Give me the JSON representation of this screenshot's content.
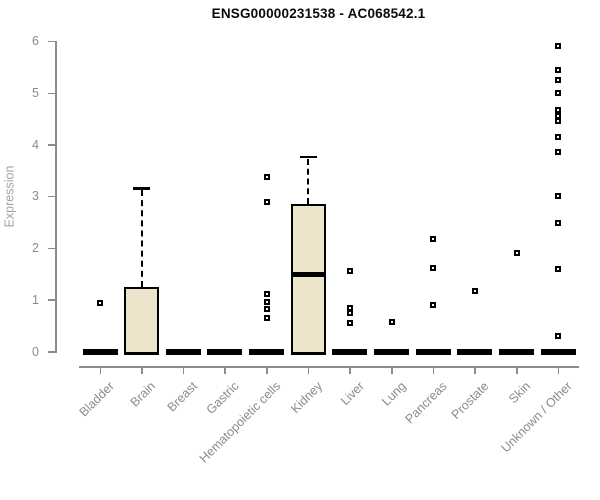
{
  "chart_data": {
    "type": "boxplot",
    "title": "ENSG00000231538 - AC068542.1",
    "ylabel": "Expression",
    "ylim": [
      0,
      6
    ],
    "yticks": [
      0,
      1,
      2,
      3,
      4,
      5,
      6
    ],
    "grid": false,
    "legend": "none",
    "marker": "open-square",
    "categories": [
      "Bladder",
      "Brain",
      "Breast",
      "Gastric",
      "Hematopoietic cells",
      "Kidney",
      "Liver",
      "Lung",
      "Pancreas",
      "Prostate",
      "Skin",
      "Unknown / Other"
    ],
    "series": [
      {
        "whisker_low": 0,
        "q1": 0,
        "median": 0,
        "q3": 0,
        "whisker_high": 0,
        "outliers": [
          0.93
        ]
      },
      {
        "whisker_low": 0,
        "q1": 0,
        "median": 0,
        "q3": 1.24,
        "whisker_high": 3.16,
        "outliers": []
      },
      {
        "whisker_low": 0,
        "q1": 0,
        "median": 0,
        "q3": 0,
        "whisker_high": 0,
        "outliers": []
      },
      {
        "whisker_low": 0,
        "q1": 0,
        "median": 0,
        "q3": 0,
        "whisker_high": 0,
        "outliers": []
      },
      {
        "whisker_low": 0,
        "q1": 0,
        "median": 0,
        "q3": 0,
        "whisker_high": 0,
        "outliers": [
          3.37,
          2.9,
          1.12,
          0.95,
          0.82,
          0.64
        ]
      },
      {
        "whisker_low": 0,
        "q1": 0,
        "median": 1.48,
        "q3": 2.86,
        "whisker_high": 3.77,
        "outliers": []
      },
      {
        "whisker_low": 0,
        "q1": 0,
        "median": 0,
        "q3": 0,
        "whisker_high": 0,
        "outliers": [
          1.55,
          0.85,
          0.75,
          0.55
        ]
      },
      {
        "whisker_low": 0,
        "q1": 0,
        "median": 0,
        "q3": 0,
        "whisker_high": 0,
        "outliers": [
          0.58
        ]
      },
      {
        "whisker_low": 0,
        "q1": 0,
        "median": 0,
        "q3": 0,
        "whisker_high": 0,
        "outliers": [
          2.17,
          1.62,
          0.9
        ]
      },
      {
        "whisker_low": 0,
        "q1": 0,
        "median": 0,
        "q3": 0,
        "whisker_high": 0,
        "outliers": [
          1.17
        ]
      },
      {
        "whisker_low": 0,
        "q1": 0,
        "median": 0,
        "q3": 0,
        "whisker_high": 0,
        "outliers": [
          1.9
        ]
      },
      {
        "whisker_low": 0,
        "q1": 0,
        "median": 0,
        "q3": 0,
        "whisker_high": 0,
        "outliers": [
          5.9,
          5.45,
          5.25,
          5.0,
          4.67,
          4.56,
          4.45,
          4.15,
          3.85,
          3.0,
          2.48,
          1.6,
          0.3
        ]
      }
    ],
    "colors": {
      "box_fill": "#ECE5CB",
      "box_border": "#000000",
      "axis": "#8B8B8B",
      "tick_label": "#8B8B8B",
      "ylabel_color": "#A3A3A3",
      "title_color": "#0A0A0A",
      "background": "#FFFFFF"
    }
  }
}
